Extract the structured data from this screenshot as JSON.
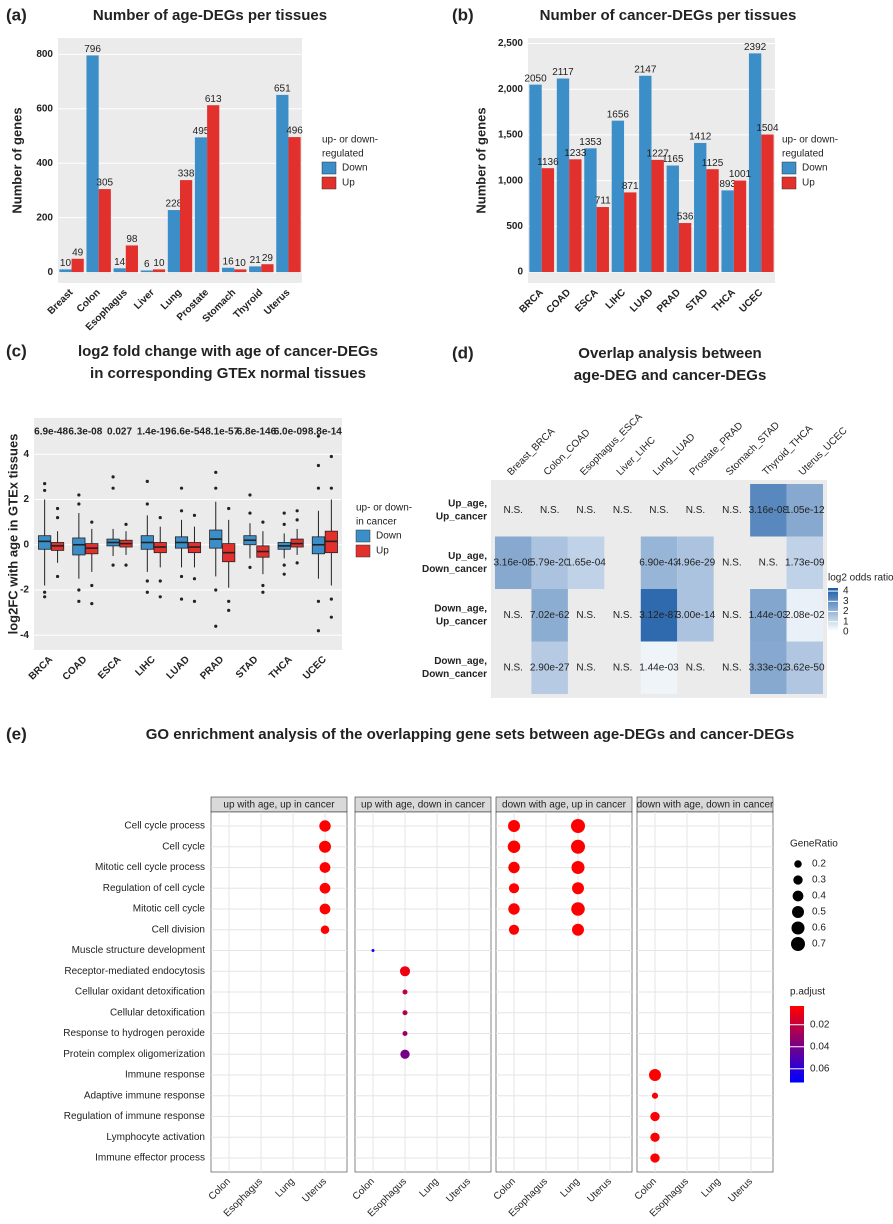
{
  "chart_data": [
    {
      "panel": "(a)",
      "type": "bar",
      "title": "Number of age-DEGs per tissues",
      "y_label": "Number of genes",
      "categories": [
        "Breast",
        "Colon",
        "Esophagus",
        "Liver",
        "Lung",
        "Prostate",
        "Stomach",
        "Thyroid",
        "Uterus"
      ],
      "series": [
        {
          "name": "Down",
          "color": "#3b8ec7",
          "values": [
            10,
            796,
            14,
            6,
            228,
            495,
            16,
            21,
            651
          ]
        },
        {
          "name": "Up",
          "color": "#e2312d",
          "values": [
            49,
            305,
            98,
            10,
            338,
            613,
            10,
            29,
            496
          ]
        }
      ],
      "ylim": [
        -40,
        860
      ],
      "yticks": [
        0,
        200,
        400,
        600,
        800
      ],
      "legend_title": [
        "up- or down-",
        "regulated"
      ]
    },
    {
      "panel": "(b)",
      "type": "bar",
      "title": "Number of cancer-DEGs per tissues",
      "y_label": "Number of genes",
      "categories": [
        "BRCA",
        "COAD",
        "ESCA",
        "LIHC",
        "LUAD",
        "PRAD",
        "STAD",
        "THCA",
        "UCEC"
      ],
      "series": [
        {
          "name": "Down",
          "color": "#3b8ec7",
          "values": [
            2050,
            2117,
            1353,
            1656,
            2147,
            1165,
            1412,
            893,
            2392
          ]
        },
        {
          "name": "Up",
          "color": "#e2312d",
          "values": [
            1136,
            1233,
            711,
            871,
            1227,
            536,
            1125,
            1001,
            1504
          ]
        }
      ],
      "ylim": [
        -120,
        2560
      ],
      "yticks": [
        0,
        500,
        {
          "value": 1000,
          "label": "1,000"
        },
        {
          "value": 1500,
          "label": "1,500"
        },
        {
          "value": 2000,
          "label": "2,000"
        },
        {
          "value": 2500,
          "label": "2,500"
        }
      ],
      "legend_title": [
        "up- or down-",
        "regulated"
      ]
    },
    {
      "panel": "(c)",
      "type": "box",
      "title": [
        "log2 fold change with age of cancer-DEGs",
        "in corresponding GTEx normal tissues"
      ],
      "y_label": "log2FC with age in GTEx tissues",
      "categories": [
        "BRCA",
        "COAD",
        "ESCA",
        "LIHC",
        "LUAD",
        "PRAD",
        "STAD",
        "THCA",
        "UCEC"
      ],
      "p_values": [
        "6.9e-48",
        "6.3e-08",
        "0.027",
        "1.4e-19",
        "6.6e-54",
        "8.1e-57",
        "6.8e-146",
        "6.0e-09",
        "8.8e-14"
      ],
      "series": [
        {
          "name": "Down",
          "color": "#3b8ec7",
          "boxes": [
            {
              "low": -1.8,
              "q1": -0.2,
              "median": 0.15,
              "q3": 0.4,
              "high": 2.0,
              "outliers": [
                2.4,
                2.7,
                -2.1,
                -2.3
              ]
            },
            {
              "low": -1.5,
              "q1": -0.45,
              "median": 0,
              "q3": 0.3,
              "high": 1.4,
              "outliers": [
                1.8,
                2.2,
                -2,
                -2.5
              ]
            },
            {
              "low": -0.5,
              "q1": -0.05,
              "median": 0.1,
              "q3": 0.25,
              "high": 0.7,
              "outliers": [
                2.5,
                3.0,
                -0.9
              ]
            },
            {
              "low": -1.2,
              "q1": -0.2,
              "median": 0.1,
              "q3": 0.4,
              "high": 1.3,
              "outliers": [
                1.8,
                2.8,
                -1.6,
                -2.1
              ]
            },
            {
              "low": -1.0,
              "q1": -0.15,
              "median": 0.1,
              "q3": 0.35,
              "high": 1.1,
              "outliers": [
                1.5,
                2.5,
                -1.4,
                -2.4
              ]
            },
            {
              "low": -1.4,
              "q1": -0.15,
              "median": 0.25,
              "q3": 0.65,
              "high": 1.9,
              "outliers": [
                2.5,
                3.2,
                -2.0,
                -3.6
              ]
            },
            {
              "low": -0.6,
              "q1": 0.0,
              "median": 0.2,
              "q3": 0.4,
              "high": 0.95,
              "outliers": [
                1.4,
                2.2,
                -1.0
              ]
            },
            {
              "low": -0.6,
              "q1": -0.2,
              "median": -0.05,
              "q3": 0.1,
              "high": 0.5,
              "outliers": [
                0.9,
                1.4,
                -0.9,
                -1.3
              ]
            },
            {
              "low": -1.5,
              "q1": -0.4,
              "median": 0,
              "q3": 0.35,
              "high": 1.5,
              "outliers": [
                2.5,
                3.5,
                4.8,
                -2.5,
                -3.8
              ]
            }
          ]
        },
        {
          "name": "Up",
          "color": "#e2312d",
          "boxes": [
            {
              "low": -0.8,
              "q1": -0.25,
              "median": -0.05,
              "q3": 0.1,
              "high": 0.6,
              "outliers": [
                1.2,
                1.6,
                -1.4
              ]
            },
            {
              "low": -1.2,
              "q1": -0.4,
              "median": -0.15,
              "q3": 0.05,
              "high": 0.7,
              "outliers": [
                1.0,
                -1.8,
                -2.6
              ]
            },
            {
              "low": -0.45,
              "q1": -0.1,
              "median": 0.05,
              "q3": 0.2,
              "high": 0.6,
              "outliers": [
                0.9,
                -0.9
              ]
            },
            {
              "low": -1.0,
              "q1": -0.35,
              "median": -0.1,
              "q3": 0.1,
              "high": 0.8,
              "outliers": [
                1.2,
                -1.6,
                -2.3
              ]
            },
            {
              "low": -1.0,
              "q1": -0.35,
              "median": -0.1,
              "q3": 0.1,
              "high": 0.8,
              "outliers": [
                1.3,
                -1.5,
                -2.5
              ]
            },
            {
              "low": -1.9,
              "q1": -0.75,
              "median": -0.35,
              "q3": 0.05,
              "high": 1.1,
              "outliers": [
                1.6,
                -2.5,
                -2.9
              ]
            },
            {
              "low": -1.3,
              "q1": -0.55,
              "median": -0.3,
              "q3": -0.05,
              "high": 0.6,
              "outliers": [
                1.0,
                -1.8,
                -2.1
              ]
            },
            {
              "low": -0.45,
              "q1": -0.1,
              "median": 0.05,
              "q3": 0.25,
              "high": 0.7,
              "outliers": [
                1.1,
                1.5,
                -0.8
              ]
            },
            {
              "low": -1.8,
              "q1": -0.35,
              "median": 0.15,
              "q3": 0.6,
              "high": 2.0,
              "outliers": [
                2.5,
                3.9,
                -2.4,
                -3.2
              ]
            }
          ]
        }
      ],
      "ylim": [
        -4.65,
        5.6
      ],
      "yticks": [
        -4,
        -2,
        0,
        2,
        4
      ],
      "legend_title": [
        "up- or down-",
        "in cancer"
      ]
    },
    {
      "panel": "(d)",
      "type": "heatmap",
      "title": [
        "Overlap analysis between",
        "age-DEG and cancer-DEGs"
      ],
      "columns": [
        "Breast_BRCA",
        "Colon_COAD",
        "Esophagus_ESCA",
        "Liver_LIHC",
        "Lung_LUAD",
        "Prostate_PRAD",
        "Stomach_STAD",
        "Thyroid_THCA",
        "Uterus_UCEC"
      ],
      "rows": [
        [
          "Up_age,",
          "Up_cancer"
        ],
        [
          "Up_age,",
          "Down_cancer"
        ],
        [
          "Down_age,",
          "Up_cancer"
        ],
        [
          "Down_age,",
          "Down_cancer"
        ]
      ],
      "values": [
        [
          null,
          null,
          null,
          null,
          null,
          null,
          null,
          3.2,
          2.3
        ],
        [
          2.3,
          1.6,
          1.2,
          null,
          2.0,
          1.6,
          null,
          null,
          1.2
        ],
        [
          null,
          2.2,
          null,
          null,
          4.0,
          1.6,
          null,
          2.4,
          0.4
        ],
        [
          null,
          1.4,
          null,
          null,
          0.3,
          null,
          null,
          2.3,
          1.5
        ]
      ],
      "cell_labels": [
        [
          "N.S.",
          "N.S.",
          "N.S.",
          "N.S.",
          "N.S.",
          "N.S.",
          "N.S.",
          "3.16e-08",
          "1.05e-12"
        ],
        [
          "3.16e-08",
          "5.79e-20",
          "1.65e-04",
          null,
          "6.90e-43",
          "4.96e-29",
          "N.S.",
          "N.S.",
          "1.73e-09"
        ],
        [
          "N.S.",
          "7.02e-62",
          "N.S.",
          "N.S.",
          "3.12e-87",
          "3.00e-14",
          "N.S.",
          "1.44e-03",
          "2.08e-02"
        ],
        [
          "N.S.",
          "2.90e-27",
          "N.S.",
          "N.S.",
          "1.44e-03",
          "N.S.",
          "N.S.",
          "3.33e-02",
          "3.62e-50"
        ]
      ],
      "colorbar_title": "log2 odds ratio",
      "color_lim": [
        0,
        4.3
      ],
      "colorbar_ticks": [
        0,
        1,
        2,
        3,
        4
      ],
      "colors": [
        "#ffffff",
        "#1f5fa8"
      ]
    },
    {
      "panel": "(e)",
      "type": "dot",
      "title": "GO enrichment analysis of the overlapping gene sets between age-DEGs and cancer-DEGs",
      "x_categories": [
        "Colon",
        "Esophagus",
        "Lung",
        "Uterus"
      ],
      "terms": [
        "Cell cycle process",
        "Cell cycle",
        "Mitotic cell cycle process",
        "Regulation of cell cycle",
        "Mitotic cell cycle",
        "Cell division",
        "Muscle structure development",
        "Receptor-mediated endocytosis",
        "Cellular oxidant detoxification",
        "Cellular detoxification",
        "Response to hydrogen peroxide",
        "Protein complex oligomerization",
        "Immune response",
        "Adaptive immune response",
        "Regulation of immune response",
        "Lymphocyte activation",
        "Immune effector process"
      ],
      "facets": [
        {
          "name": "up with age, up in cancer",
          "x": [
            "Uterus",
            "Uterus",
            "Uterus",
            "Uterus",
            "Uterus",
            "Uterus"
          ],
          "y": [
            "Cell cycle process",
            "Cell cycle",
            "Mitotic cell cycle process",
            "Regulation of cell cycle",
            "Mitotic cell cycle",
            "Cell division"
          ],
          "gene_ratio": [
            0.45,
            0.5,
            0.4,
            0.4,
            0.4,
            0.25
          ],
          "p_adjust": [
            0.001,
            0.001,
            0.001,
            0.001,
            0.001,
            0.002
          ]
        },
        {
          "name": "up with age, down in cancer",
          "x": [
            "Colon",
            "Esophagus",
            "Esophagus",
            "Esophagus",
            "Esophagus",
            "Esophagus"
          ],
          "y": [
            "Muscle structure development",
            "Receptor-mediated endocytosis",
            "Cellular oxidant detoxification",
            "Cellular detoxification",
            "Response to hydrogen peroxide",
            "Protein complex oligomerization"
          ],
          "gene_ratio": [
            0.1,
            0.35,
            0.12,
            0.12,
            0.12,
            0.3
          ],
          "p_adjust": [
            0.07,
            0.008,
            0.02,
            0.025,
            0.03,
            0.04
          ]
        },
        {
          "name": "down with age, up in cancer",
          "x": [
            "Colon",
            "Colon",
            "Colon",
            "Colon",
            "Colon",
            "Colon",
            "Lung",
            "Lung",
            "Lung",
            "Lung",
            "Lung",
            "Lung"
          ],
          "y": [
            "Cell cycle process",
            "Cell cycle",
            "Mitotic cell cycle process",
            "Regulation of cell cycle",
            "Mitotic cell cycle",
            "Cell division",
            "Cell cycle process",
            "Cell cycle",
            "Mitotic cell cycle process",
            "Regulation of cell cycle",
            "Mitotic cell cycle",
            "Cell division"
          ],
          "gene_ratio": [
            0.5,
            0.55,
            0.45,
            0.35,
            0.45,
            0.35,
            0.7,
            0.7,
            0.6,
            0.5,
            0.65,
            0.5
          ],
          "p_adjust": [
            0.001,
            0.001,
            0.001,
            0.001,
            0.001,
            0.001,
            0.001,
            0.001,
            0.001,
            0.001,
            0.001,
            0.001
          ]
        },
        {
          "name": "down with age, down in cancer",
          "x": [
            "Colon",
            "Colon",
            "Colon",
            "Colon",
            "Colon"
          ],
          "y": [
            "Immune response",
            "Adaptive immune response",
            "Regulation of immune response",
            "Lymphocyte activation",
            "Immune effector process"
          ],
          "gene_ratio": [
            0.5,
            0.15,
            0.3,
            0.3,
            0.3
          ],
          "p_adjust": [
            0.002,
            0.005,
            0.004,
            0.004,
            0.004
          ]
        }
      ],
      "size_title": "GeneRatio",
      "size_ticks": [
        0.2,
        0.3,
        0.4,
        0.5,
        0.6,
        0.7
      ],
      "color_title": "p.adjust",
      "color_ticks": [
        0.02,
        0.04,
        0.06
      ],
      "color_lim": [
        0.003,
        0.072
      ],
      "colors": [
        "#ff0000",
        "#0000ff"
      ]
    }
  ]
}
